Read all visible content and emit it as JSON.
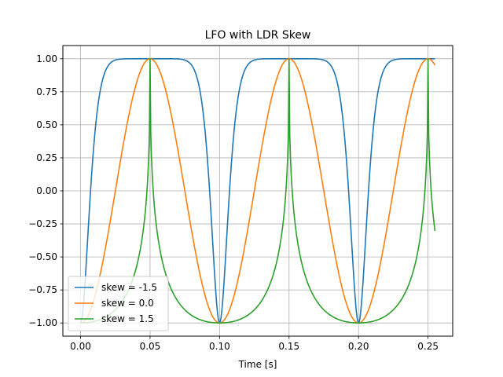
{
  "chart_data": {
    "type": "line",
    "title": "LFO with LDR Skew",
    "xlabel": "Time [s]",
    "ylabel": "",
    "xlim": [
      -0.01275,
      0.26775
    ],
    "ylim": [
      -1.1,
      1.1
    ],
    "xticks": [
      0.0,
      0.05,
      0.1,
      0.15,
      0.2,
      0.25
    ],
    "xtick_labels": [
      "0.00",
      "0.05",
      "0.10",
      "0.15",
      "0.20",
      "0.25"
    ],
    "yticks": [
      -1.0,
      -0.75,
      -0.5,
      -0.25,
      0.0,
      0.25,
      0.5,
      0.75,
      1.0
    ],
    "ytick_labels": [
      "−1.00",
      "−0.75",
      "−0.50",
      "−0.25",
      "0.00",
      "0.25",
      "0.50",
      "0.75",
      "1.00"
    ],
    "grid": true,
    "legend_position": "lower-left",
    "x": {
      "start": 0.0,
      "end": 0.255,
      "step": 0.0005
    },
    "frequency_hz": 10,
    "series": [
      {
        "name": "skew = -1.5",
        "skew": -1.5,
        "color": "#1f77b4"
      },
      {
        "name": "skew = 0.0",
        "skew": 0.0,
        "color": "#ff7f0e"
      },
      {
        "name": "skew = 1.5",
        "skew": 1.5,
        "color": "#2ca02c"
      }
    ]
  }
}
